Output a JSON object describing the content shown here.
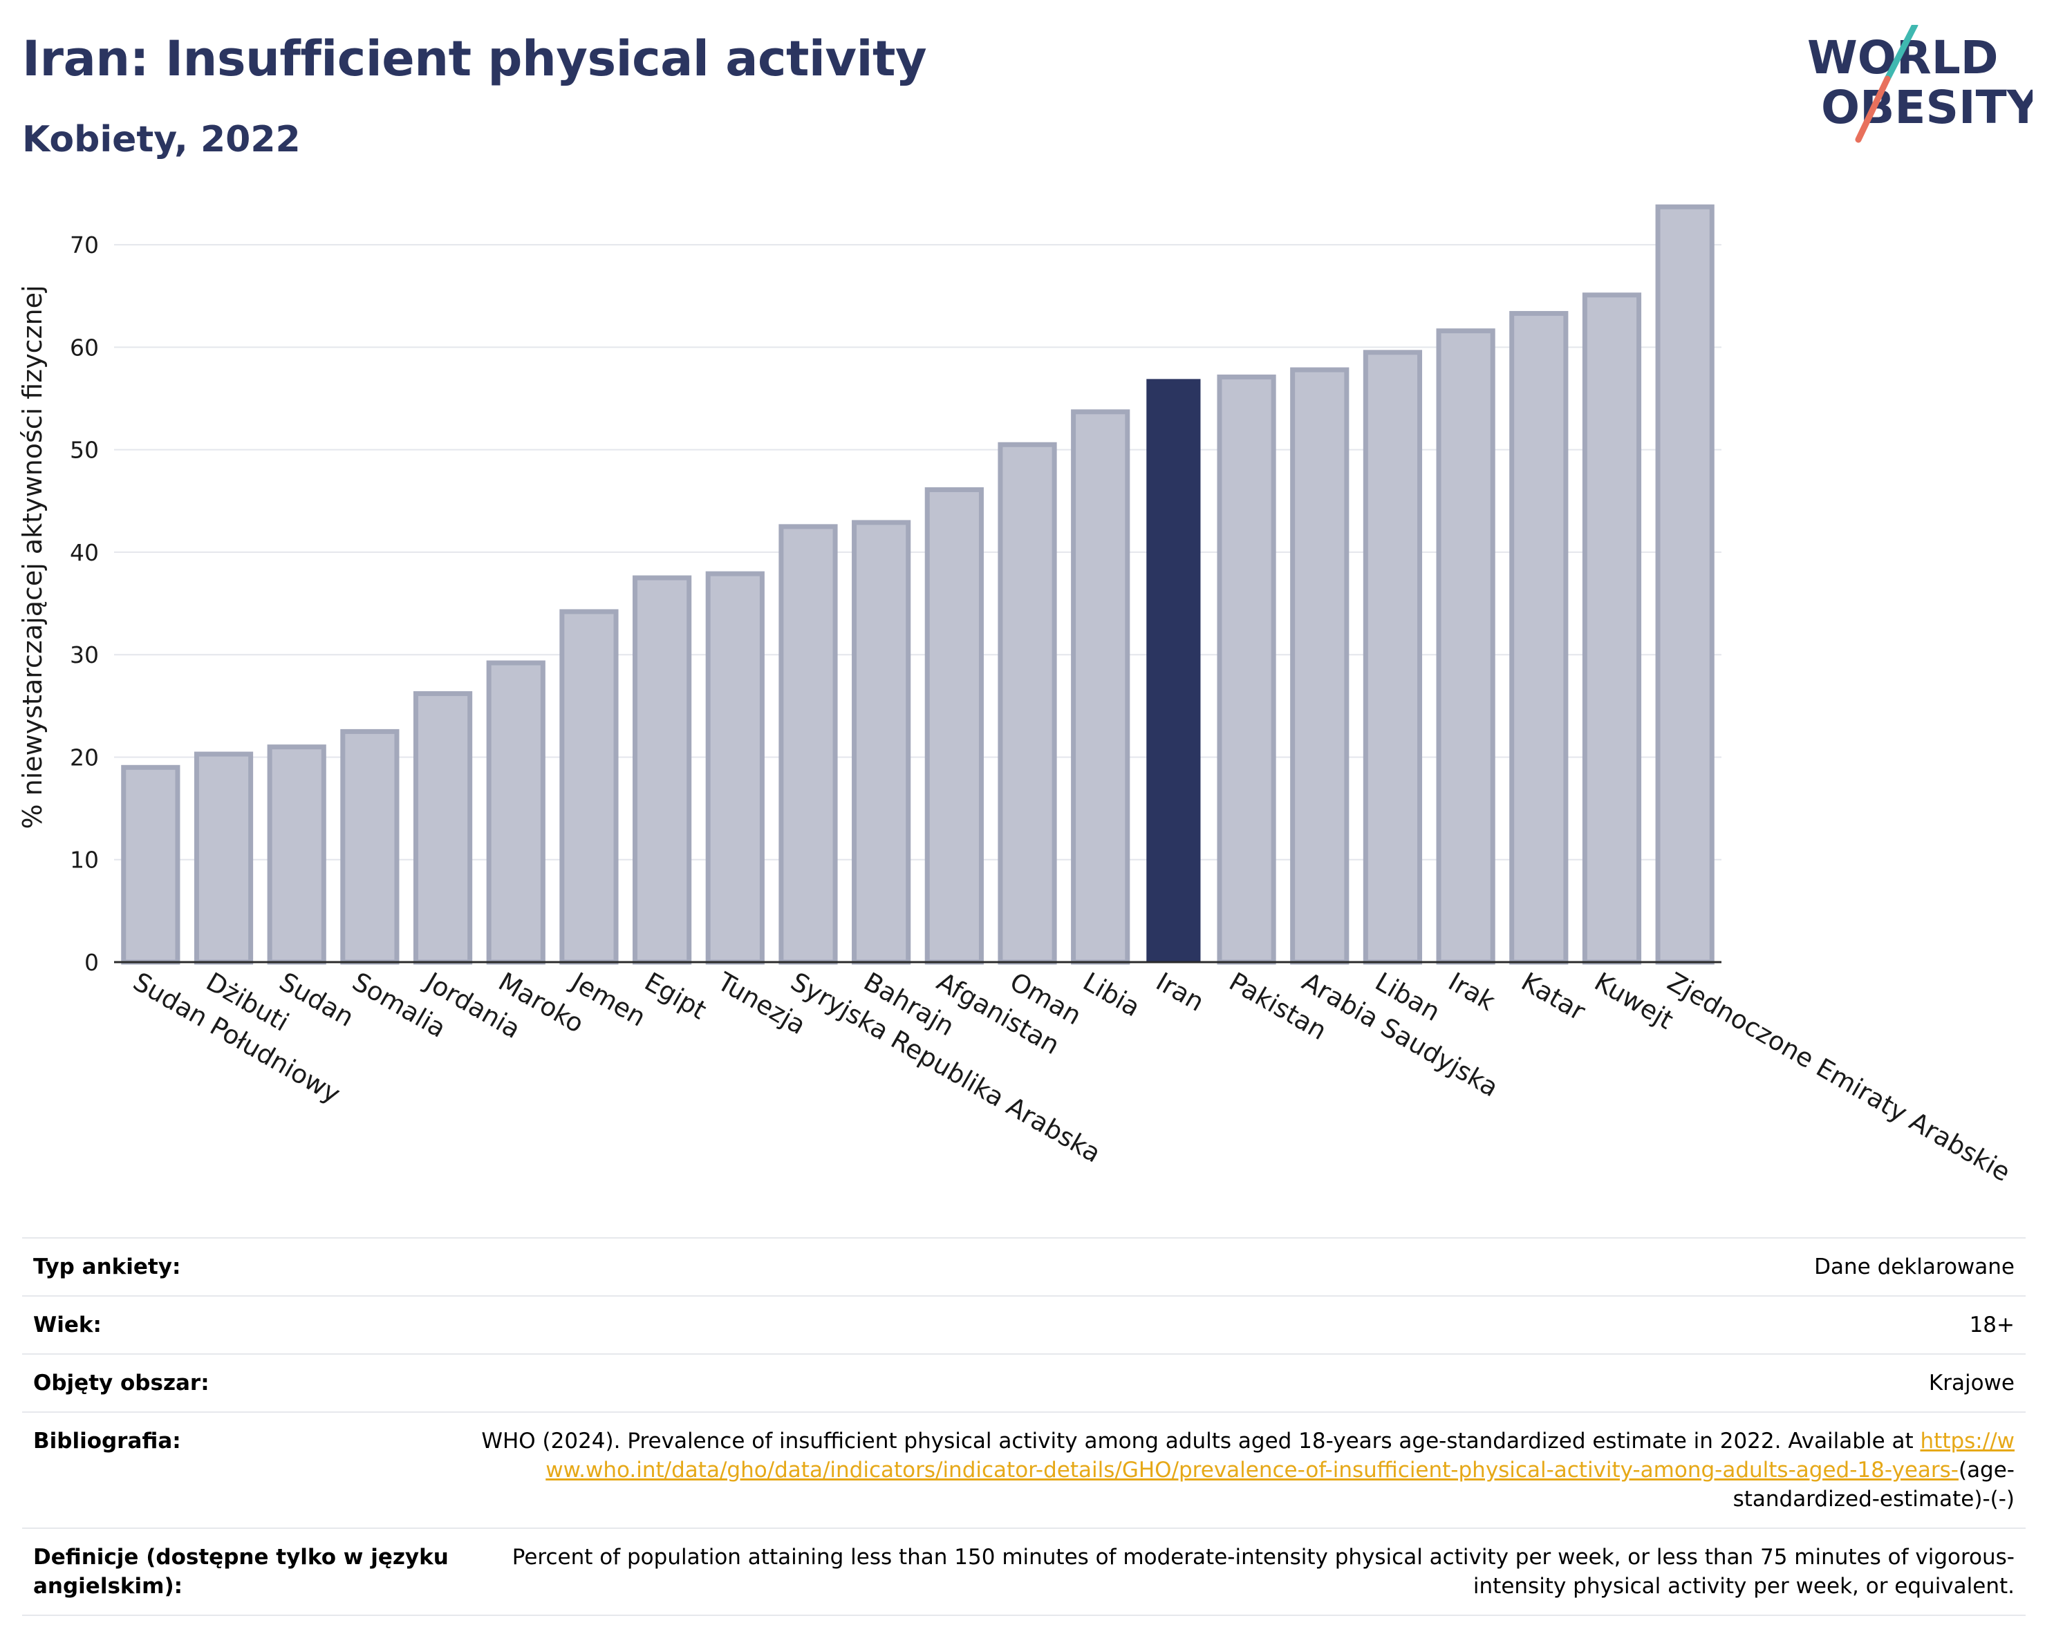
{
  "header": {
    "title": "Iran: Insufficient physical activity",
    "subtitle": "Kobiety, 2022"
  },
  "logo": {
    "line1": "WORLD",
    "line2": "OBESITY"
  },
  "colors": {
    "highlight": "#2b3560",
    "bar": "#bfc2d0",
    "bar_border": "#a3a8bb",
    "link": "#e6a817",
    "logo_teal": "#3fb8b0",
    "logo_coral": "#e8705c"
  },
  "chart_data": {
    "type": "bar",
    "title": "Iran: Insufficient physical activity",
    "subtitle": "Kobiety, 2022",
    "ylabel": "% niewystarczającej aktywności fizycznej",
    "xlabel": "",
    "ylim": [
      0,
      75
    ],
    "yticks": [
      0,
      10,
      20,
      30,
      40,
      50,
      60,
      70
    ],
    "grid": true,
    "highlight": "Iran",
    "categories": [
      "Sudan Południowy",
      "Dżibuti",
      "Sudan",
      "Somalia",
      "Jordania",
      "Maroko",
      "Jemen",
      "Egipt",
      "Tunezja",
      "Syryjska Republika Arabska",
      "Bahrajn",
      "Afganistan",
      "Oman",
      "Libia",
      "Iran",
      "Pakistan",
      "Arabia Saudyjska",
      "Liban",
      "Irak",
      "Katar",
      "Kuwejt",
      "Zjednoczone Emiraty Arabskie"
    ],
    "values": [
      19.0,
      20.3,
      21.0,
      22.5,
      26.2,
      29.2,
      34.2,
      37.5,
      37.9,
      42.5,
      42.9,
      46.1,
      50.5,
      53.7,
      56.9,
      57.1,
      57.8,
      59.5,
      61.6,
      63.3,
      65.1,
      73.7
    ]
  },
  "info": [
    {
      "label": "Typ ankiety:",
      "value": "Dane deklarowane"
    },
    {
      "label": "Wiek:",
      "value": "18+"
    },
    {
      "label": "Objęty obszar:",
      "value": "Krajowe"
    },
    {
      "label": "Bibliografia:",
      "value": "WHO (2024). Prevalence of insufficient physical activity among adults aged 18-years age-standardized estimate in 2022. Available at",
      "link": "https://www.who.int/data/gho/data/indicators/indicator-details/GHO/prevalence-of-insufficient-physical-activity-among-adults-aged-18-years-",
      "suffix": "(age-standardized-estimate)-(-)"
    },
    {
      "label": "Definicje (dostępne tylko w języku angielskim):",
      "value": "Percent of population attaining less than 150 minutes of moderate-intensity physical activity per week, or less than 75 minutes of vigorous-intensity physical activity per week, or equivalent."
    }
  ]
}
